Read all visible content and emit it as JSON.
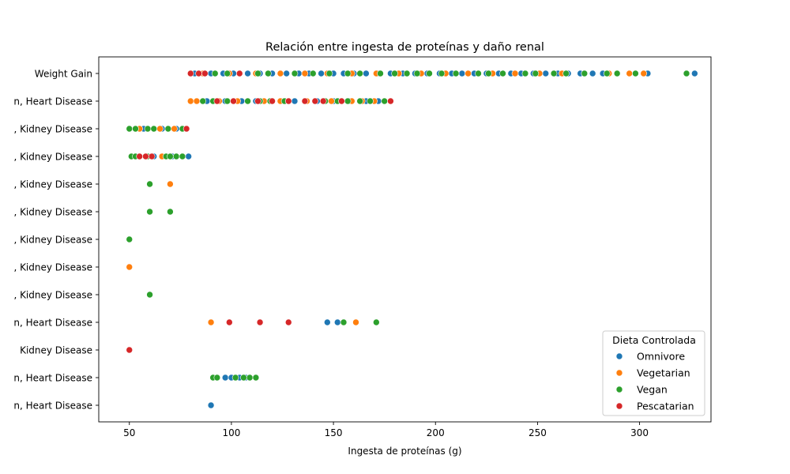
{
  "chart_data": {
    "type": "scatter",
    "title": "Relación entre ingesta de proteínas y daño renal",
    "xlabel": "Ingesta de proteínas (g)",
    "ylabel": "",
    "xlim": [
      35,
      335
    ],
    "xticks": [
      50,
      100,
      150,
      200,
      250,
      300
    ],
    "categories": [
      "Weight Gain",
      "n, Heart Disease",
      ", Kidney Disease",
      ", Kidney Disease",
      ", Kidney Disease",
      ", Kidney Disease",
      ", Kidney Disease",
      ", Kidney Disease",
      ", Kidney Disease",
      "n, Heart Disease",
      "Kidney Disease",
      "n, Heart Disease",
      "n, Heart Disease"
    ],
    "legend": {
      "title": "Dieta Controlada",
      "position": "lower-right"
    },
    "grid": false,
    "colors": {
      "Omnivore": "#1f77b4",
      "Vegetarian": "#ff7f0e",
      "Vegan": "#2ca02c",
      "Pescatarian": "#d62728"
    },
    "series": [
      {
        "name": "Omnivore",
        "points": [
          [
            0,
            82
          ],
          [
            0,
            90
          ],
          [
            0,
            96
          ],
          [
            0,
            101
          ],
          [
            0,
            108
          ],
          [
            0,
            114
          ],
          [
            0,
            120
          ],
          [
            0,
            127
          ],
          [
            0,
            133
          ],
          [
            0,
            138
          ],
          [
            0,
            144
          ],
          [
            0,
            150
          ],
          [
            0,
            155
          ],
          [
            0,
            160
          ],
          [
            0,
            166
          ],
          [
            0,
            172
          ],
          [
            0,
            178
          ],
          [
            0,
            184
          ],
          [
            0,
            190
          ],
          [
            0,
            196
          ],
          [
            0,
            202
          ],
          [
            0,
            208
          ],
          [
            0,
            213
          ],
          [
            0,
            219
          ],
          [
            0,
            225
          ],
          [
            0,
            231
          ],
          [
            0,
            237
          ],
          [
            0,
            242
          ],
          [
            0,
            248
          ],
          [
            0,
            254
          ],
          [
            0,
            260
          ],
          [
            0,
            265
          ],
          [
            0,
            271
          ],
          [
            0,
            277
          ],
          [
            0,
            282
          ],
          [
            0,
            304
          ],
          [
            0,
            327
          ],
          [
            1,
            88
          ],
          [
            1,
            97
          ],
          [
            1,
            105
          ],
          [
            1,
            112
          ],
          [
            1,
            120
          ],
          [
            1,
            131
          ],
          [
            1,
            142
          ],
          [
            1,
            150
          ],
          [
            1,
            158
          ],
          [
            1,
            166
          ],
          [
            1,
            172
          ],
          [
            2,
            57
          ],
          [
            2,
            66
          ],
          [
            2,
            73
          ],
          [
            3,
            62
          ],
          [
            3,
            71
          ],
          [
            3,
            79
          ],
          [
            9,
            147
          ],
          [
            9,
            152
          ],
          [
            11,
            97
          ],
          [
            11,
            100
          ],
          [
            11,
            104
          ],
          [
            11,
            107
          ],
          [
            12,
            90
          ]
        ]
      },
      {
        "name": "Vegetarian",
        "points": [
          [
            0,
            86
          ],
          [
            0,
            99
          ],
          [
            0,
            112
          ],
          [
            0,
            124
          ],
          [
            0,
            136
          ],
          [
            0,
            147
          ],
          [
            0,
            159
          ],
          [
            0,
            171
          ],
          [
            0,
            182
          ],
          [
            0,
            193
          ],
          [
            0,
            205
          ],
          [
            0,
            216
          ],
          [
            0,
            228
          ],
          [
            0,
            239
          ],
          [
            0,
            251
          ],
          [
            0,
            262
          ],
          [
            0,
            273
          ],
          [
            0,
            285
          ],
          [
            0,
            295
          ],
          [
            0,
            302
          ],
          [
            1,
            80
          ],
          [
            1,
            83
          ],
          [
            1,
            94
          ],
          [
            1,
            103
          ],
          [
            1,
            116
          ],
          [
            1,
            124
          ],
          [
            1,
            137
          ],
          [
            1,
            149
          ],
          [
            1,
            159
          ],
          [
            1,
            164
          ],
          [
            1,
            170
          ],
          [
            2,
            55
          ],
          [
            2,
            65
          ],
          [
            2,
            72
          ],
          [
            3,
            66
          ],
          [
            3,
            76
          ],
          [
            4,
            70
          ],
          [
            7,
            50
          ],
          [
            9,
            90
          ],
          [
            9,
            161
          ]
        ]
      },
      {
        "name": "Vegan",
        "points": [
          [
            0,
            92
          ],
          [
            0,
            98
          ],
          [
            0,
            104
          ],
          [
            0,
            113
          ],
          [
            0,
            118
          ],
          [
            0,
            131
          ],
          [
            0,
            140
          ],
          [
            0,
            148
          ],
          [
            0,
            157
          ],
          [
            0,
            163
          ],
          [
            0,
            173
          ],
          [
            0,
            180
          ],
          [
            0,
            186
          ],
          [
            0,
            191
          ],
          [
            0,
            197
          ],
          [
            0,
            203
          ],
          [
            0,
            210
          ],
          [
            0,
            221
          ],
          [
            0,
            226
          ],
          [
            0,
            233
          ],
          [
            0,
            244
          ],
          [
            0,
            249
          ],
          [
            0,
            258
          ],
          [
            0,
            264
          ],
          [
            0,
            273
          ],
          [
            0,
            284
          ],
          [
            0,
            289
          ],
          [
            0,
            298
          ],
          [
            0,
            323
          ],
          [
            1,
            86
          ],
          [
            1,
            91
          ],
          [
            1,
            98
          ],
          [
            1,
            108
          ],
          [
            1,
            114
          ],
          [
            1,
            119
          ],
          [
            1,
            126
          ],
          [
            1,
            128
          ],
          [
            1,
            146
          ],
          [
            1,
            152
          ],
          [
            1,
            157
          ],
          [
            1,
            163
          ],
          [
            1,
            168
          ],
          [
            1,
            175
          ],
          [
            2,
            50
          ],
          [
            2,
            53
          ],
          [
            2,
            59
          ],
          [
            2,
            62
          ],
          [
            2,
            69
          ],
          [
            2,
            76
          ],
          [
            3,
            51
          ],
          [
            3,
            53
          ],
          [
            3,
            59
          ],
          [
            3,
            68
          ],
          [
            3,
            70
          ],
          [
            3,
            73
          ],
          [
            3,
            76
          ],
          [
            4,
            60
          ],
          [
            5,
            60
          ],
          [
            5,
            70
          ],
          [
            6,
            50
          ],
          [
            8,
            60
          ],
          [
            9,
            155
          ],
          [
            9,
            171
          ],
          [
            11,
            91
          ],
          [
            11,
            93
          ],
          [
            11,
            102
          ],
          [
            11,
            106
          ],
          [
            11,
            109
          ],
          [
            11,
            112
          ]
        ]
      },
      {
        "name": "Pescatarian",
        "points": [
          [
            0,
            80
          ],
          [
            0,
            84
          ],
          [
            0,
            87
          ],
          [
            0,
            104
          ],
          [
            1,
            93
          ],
          [
            1,
            101
          ],
          [
            1,
            113
          ],
          [
            1,
            120
          ],
          [
            1,
            128
          ],
          [
            1,
            136
          ],
          [
            1,
            141
          ],
          [
            1,
            145
          ],
          [
            1,
            154
          ],
          [
            1,
            178
          ],
          [
            2,
            78
          ],
          [
            3,
            55
          ],
          [
            3,
            58
          ],
          [
            3,
            61
          ],
          [
            9,
            99
          ],
          [
            9,
            114
          ],
          [
            9,
            128
          ],
          [
            10,
            50
          ]
        ]
      }
    ]
  }
}
